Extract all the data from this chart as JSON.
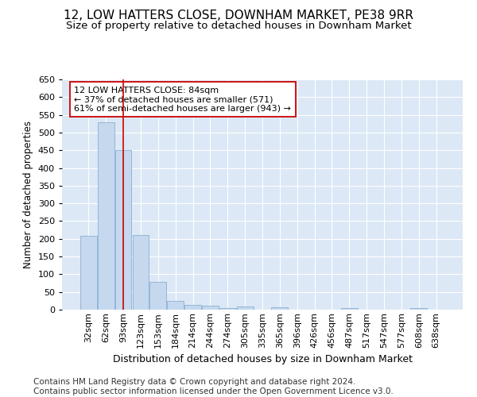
{
  "title": "12, LOW HATTERS CLOSE, DOWNHAM MARKET, PE38 9RR",
  "subtitle": "Size of property relative to detached houses in Downham Market",
  "xlabel": "Distribution of detached houses by size in Downham Market",
  "ylabel": "Number of detached properties",
  "categories": [
    "32sqm",
    "62sqm",
    "93sqm",
    "123sqm",
    "153sqm",
    "184sqm",
    "214sqm",
    "244sqm",
    "274sqm",
    "305sqm",
    "335sqm",
    "365sqm",
    "396sqm",
    "426sqm",
    "456sqm",
    "487sqm",
    "517sqm",
    "547sqm",
    "577sqm",
    "608sqm",
    "638sqm"
  ],
  "values": [
    208,
    530,
    450,
    210,
    78,
    25,
    14,
    11,
    5,
    8,
    0,
    6,
    0,
    0,
    0,
    5,
    0,
    0,
    0,
    5,
    0
  ],
  "bar_color": "#c5d8ee",
  "bar_edge_color": "#8ab0d4",
  "vline_x": 2.0,
  "vline_color": "#cc0000",
  "annotation_text": "12 LOW HATTERS CLOSE: 84sqm\n← 37% of detached houses are smaller (571)\n61% of semi-detached houses are larger (943) →",
  "annotation_box_color": "#ffffff",
  "annotation_box_edge": "#cc0000",
  "ylim": [
    0,
    650
  ],
  "yticks": [
    0,
    50,
    100,
    150,
    200,
    250,
    300,
    350,
    400,
    450,
    500,
    550,
    600,
    650
  ],
  "background_color": "#dce8f5",
  "footer": "Contains HM Land Registry data © Crown copyright and database right 2024.\nContains public sector information licensed under the Open Government Licence v3.0.",
  "title_fontsize": 11,
  "subtitle_fontsize": 9.5,
  "xlabel_fontsize": 9,
  "ylabel_fontsize": 8.5,
  "tick_fontsize": 8,
  "footer_fontsize": 7.5
}
